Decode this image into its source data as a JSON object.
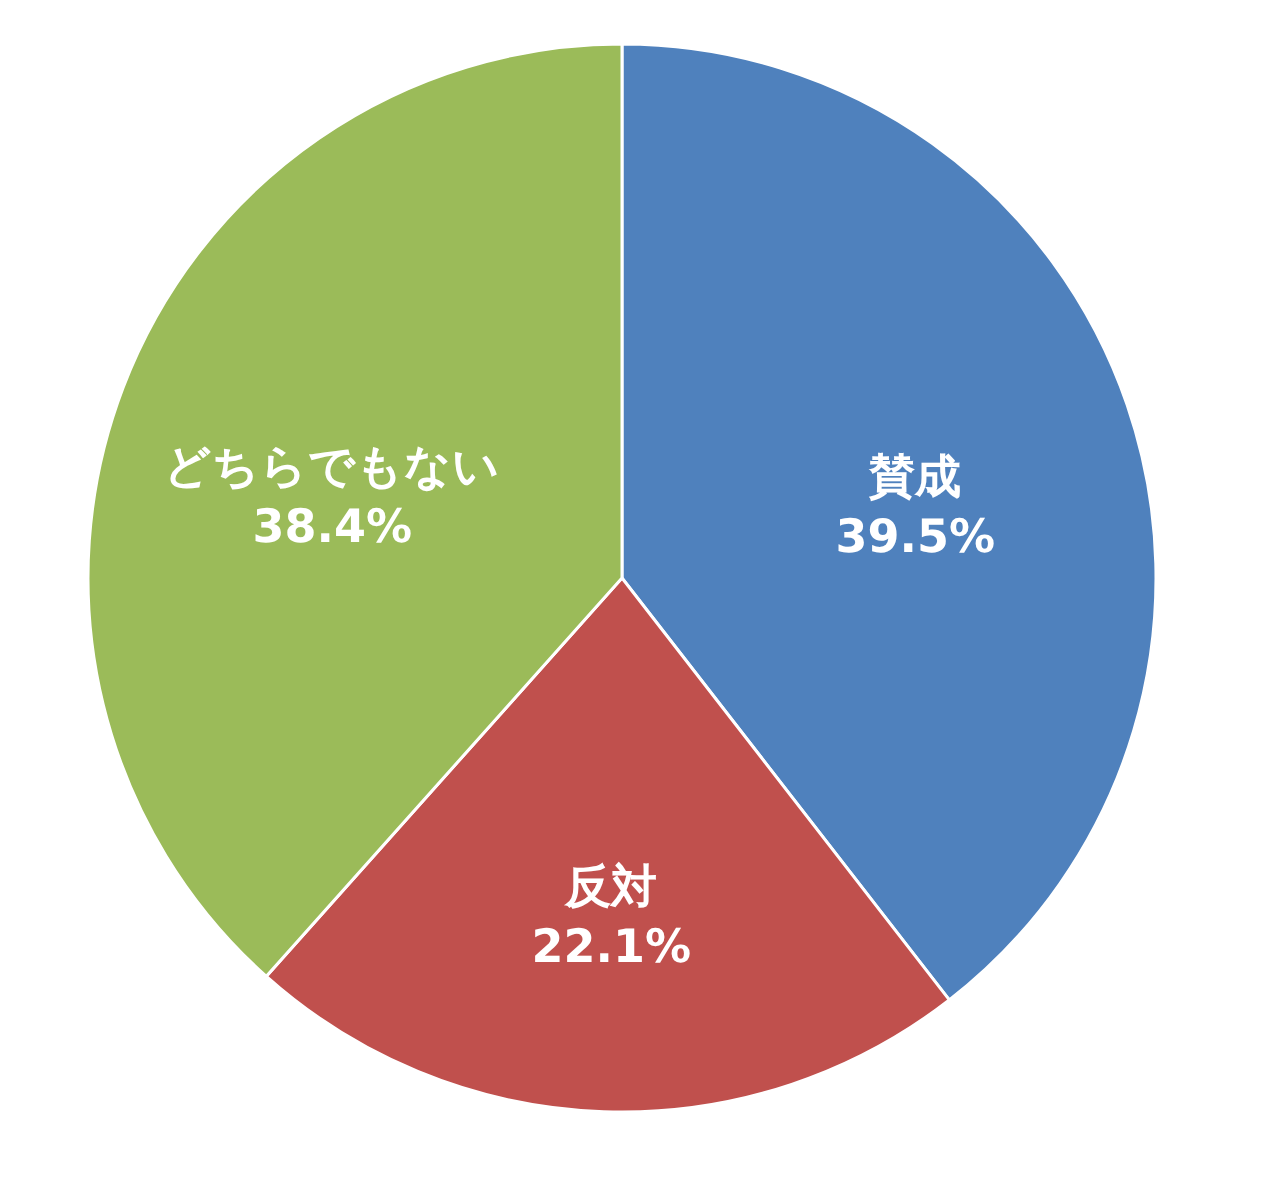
{
  "chart_data": {
    "type": "pie",
    "categories": [
      "賛成",
      "反対",
      "どちらでもない"
    ],
    "values": [
      39.5,
      22.1,
      38.4
    ],
    "colors": [
      "#4f81bd",
      "#c0504d",
      "#9bbb59"
    ],
    "value_labels": [
      "39.5%",
      "22.1%",
      "38.4%"
    ]
  }
}
